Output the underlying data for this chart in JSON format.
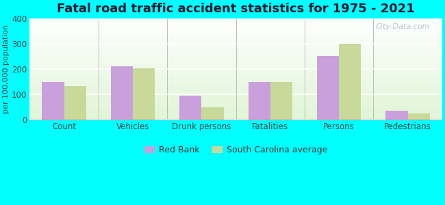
{
  "title": "Fatal road traffic accident statistics for 1975 - 2021",
  "categories": [
    "Count",
    "Vehicles",
    "Drunk persons",
    "Fatalities",
    "Persons",
    "Pedestrians"
  ],
  "red_bank_values": [
    148,
    210,
    95,
    148,
    250,
    35
  ],
  "sc_avg_values": [
    133,
    203,
    48,
    148,
    300,
    25
  ],
  "bar_color_redbank": "#c9a0dc",
  "bar_color_scavg": "#c8d99a",
  "background_color": "#00ffff",
  "ylabel": "per 100,000 population",
  "ylim": [
    0,
    400
  ],
  "yticks": [
    0,
    100,
    200,
    300,
    400
  ],
  "legend_label_1": "Red Bank",
  "legend_label_2": "South Carolina average",
  "title_fontsize": 13,
  "axis_label_fontsize": 8,
  "tick_label_fontsize": 8.5,
  "watermark": "City-Data.com",
  "bar_width": 0.32
}
